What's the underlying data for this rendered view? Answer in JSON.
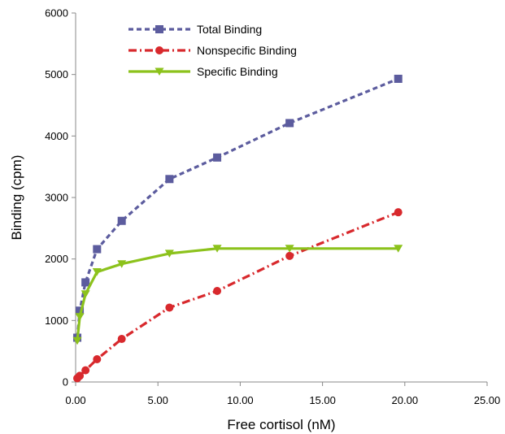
{
  "chart_data": {
    "type": "line",
    "xlabel": "Free cortisol (nM)",
    "ylabel": "Binding (cpm)",
    "xlim": [
      0,
      25
    ],
    "ylim": [
      0,
      6000
    ],
    "x_ticks": [
      "0.00",
      "5.00",
      "10.00",
      "15.00",
      "20.00",
      "25.00"
    ],
    "y_ticks": [
      "0",
      "1000",
      "2000",
      "3000",
      "4000",
      "5000",
      "6000"
    ],
    "grid": false,
    "legend_position": "top-left",
    "series": [
      {
        "name": "Total Binding",
        "color": "#5c5c9e",
        "line_style": "dashed",
        "marker": "square",
        "points": [
          [
            0.1,
            720
          ],
          [
            0.25,
            1160
          ],
          [
            0.6,
            1620
          ],
          [
            1.3,
            2160
          ],
          [
            2.8,
            2620
          ],
          [
            5.7,
            3300
          ],
          [
            8.6,
            3650
          ],
          [
            13.0,
            4210
          ],
          [
            19.6,
            4930
          ]
        ]
      },
      {
        "name": "Nonspecific Binding",
        "color": "#d8292d",
        "line_style": "dash-dot",
        "marker": "circle",
        "points": [
          [
            0.1,
            60
          ],
          [
            0.25,
            100
          ],
          [
            0.6,
            190
          ],
          [
            1.3,
            370
          ],
          [
            2.8,
            700
          ],
          [
            5.7,
            1210
          ],
          [
            8.6,
            1480
          ],
          [
            13.0,
            2050
          ],
          [
            19.6,
            2760
          ]
        ]
      },
      {
        "name": "Specific Binding",
        "color": "#8cc21c",
        "line_style": "solid",
        "marker": "triangle-down",
        "points": [
          [
            0.1,
            670
          ],
          [
            0.25,
            1060
          ],
          [
            0.6,
            1430
          ],
          [
            1.3,
            1790
          ],
          [
            2.8,
            1920
          ],
          [
            5.7,
            2090
          ],
          [
            8.6,
            2170
          ],
          [
            13.0,
            2170
          ],
          [
            19.6,
            2170
          ]
        ]
      }
    ]
  }
}
